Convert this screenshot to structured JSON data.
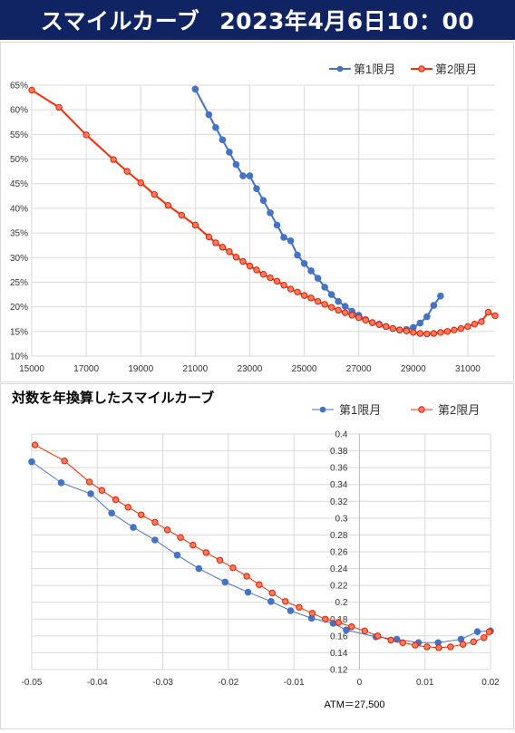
{
  "header": {
    "title": "スマイルカーブ",
    "datetime": "2023年4月6日10：00",
    "background_color": "#102463"
  },
  "chart_data": [
    {
      "type": "line",
      "title": "",
      "xlim": [
        15000,
        32000
      ],
      "ylim": [
        10,
        65
      ],
      "x_ticks": [
        15000,
        17000,
        19000,
        21000,
        23000,
        25000,
        27000,
        29000,
        31000
      ],
      "x_tick_labels": [
        "15000",
        "17000",
        "19000",
        "21000",
        "23000",
        "25000",
        "27000",
        "29000",
        "31000"
      ],
      "y_ticks": [
        10,
        15,
        20,
        25,
        30,
        35,
        40,
        45,
        50,
        55,
        60,
        65
      ],
      "y_tick_labels": [
        "10%",
        "15%",
        "20%",
        "25%",
        "30%",
        "35%",
        "40%",
        "45%",
        "50%",
        "55%",
        "60%",
        "65%"
      ],
      "grid": true,
      "legend": "top-right",
      "series": [
        {
          "name": "第1限月",
          "color": "#4472C4",
          "x": [
            21000,
            21500,
            21750,
            22000,
            22250,
            22500,
            22750,
            23000,
            23250,
            23500,
            23750,
            24000,
            24250,
            24500,
            24750,
            25000,
            25250,
            25500,
            25750,
            26000,
            26250,
            26500,
            26750,
            27000,
            27250,
            27500,
            27750,
            28000,
            28250,
            28500,
            28750,
            29000,
            29250,
            29500,
            29750,
            30000
          ],
          "y": [
            64.2,
            59.0,
            56.4,
            53.9,
            51.4,
            48.9,
            46.6,
            46.6,
            44.0,
            41.6,
            39.1,
            36.6,
            34.1,
            33.4,
            30.5,
            28.8,
            27.3,
            25.8,
            24.0,
            22.5,
            21.1,
            20.1,
            19.1,
            18.3,
            17.4,
            16.8,
            16.5,
            16.0,
            15.6,
            15.3,
            15.4,
            15.8,
            16.7,
            18.0,
            20.3,
            22.2
          ]
        },
        {
          "name": "第2限月",
          "color": "#FF2A00",
          "x": [
            15000,
            16000,
            17000,
            18000,
            18500,
            19000,
            19500,
            20000,
            20500,
            21000,
            21500,
            21750,
            22000,
            22250,
            22500,
            22750,
            23000,
            23250,
            23500,
            23750,
            24000,
            24250,
            24500,
            24750,
            25000,
            25250,
            25500,
            25750,
            26000,
            26250,
            26500,
            26750,
            27000,
            27250,
            27500,
            27750,
            28000,
            28250,
            28500,
            28750,
            29000,
            29250,
            29500,
            29750,
            30000,
            30250,
            30500,
            30750,
            31000,
            31250,
            31500,
            31750,
            32000
          ],
          "y": [
            64.0,
            60.5,
            54.9,
            49.9,
            47.5,
            45.2,
            42.8,
            40.6,
            38.6,
            36.6,
            34.2,
            33.0,
            32.1,
            31.2,
            30.1,
            29.2,
            28.3,
            27.5,
            26.6,
            25.9,
            25.2,
            24.4,
            23.6,
            23.0,
            22.3,
            21.8,
            21.1,
            20.5,
            19.9,
            19.3,
            18.8,
            18.3,
            17.8,
            17.3,
            16.8,
            16.4,
            16.0,
            15.6,
            15.3,
            15.1,
            14.8,
            14.6,
            14.5,
            14.6,
            14.8,
            15.0,
            15.3,
            15.6,
            16.0,
            16.5,
            17.0,
            18.9,
            18.2
          ]
        }
      ]
    },
    {
      "type": "line",
      "title": "対数を年換算したスマイルカーブ",
      "annotation": "ATM＝27,500",
      "xlim": [
        -0.05,
        0.02
      ],
      "ylim": [
        0.12,
        0.4
      ],
      "x_ticks": [
        -0.05,
        -0.04,
        -0.03,
        -0.02,
        -0.01,
        0,
        0.01,
        0.02
      ],
      "x_tick_labels": [
        "-0.05",
        "-0.04",
        "-0.03",
        "-0.02",
        "-0.01",
        "0",
        "0.01",
        "0.02"
      ],
      "y_ticks": [
        0.12,
        0.14,
        0.16,
        0.18,
        0.2,
        0.22,
        0.24,
        0.26,
        0.28,
        0.3,
        0.32,
        0.34,
        0.36,
        0.38,
        0.4
      ],
      "y_tick_labels": [
        "0.12",
        "0.14",
        "0.16",
        "0.18",
        "0.2",
        "0.22",
        "0.24",
        "0.26",
        "0.28",
        "0.3",
        "0.32",
        "0.34",
        "0.36",
        "0.38",
        "0.4"
      ],
      "grid": true,
      "legend": "top-right",
      "series": [
        {
          "name": "第1限月",
          "color": "#4472C4",
          "x": [
            -0.05,
            -0.0455,
            -0.041,
            -0.0378,
            -0.0345,
            -0.0312,
            -0.0278,
            -0.0245,
            -0.0205,
            -0.017,
            -0.0135,
            -0.0105,
            -0.0073,
            -0.004,
            -0.002,
            0.0025,
            0.0057,
            0.009,
            0.012,
            0.0155,
            0.018,
            0.02
          ],
          "y": [
            0.367,
            0.342,
            0.329,
            0.306,
            0.289,
            0.274,
            0.256,
            0.24,
            0.224,
            0.212,
            0.201,
            0.19,
            0.181,
            0.175,
            0.167,
            0.159,
            0.156,
            0.152,
            0.152,
            0.156,
            0.165,
            0.166
          ]
        },
        {
          "name": "第2限月",
          "color": "#FF2A00",
          "x": [
            -0.0495,
            -0.045,
            -0.0412,
            -0.0393,
            -0.0372,
            -0.0353,
            -0.0333,
            -0.0312,
            -0.0293,
            -0.0273,
            -0.0254,
            -0.0234,
            -0.0213,
            -0.0193,
            -0.0172,
            -0.0153,
            -0.0133,
            -0.0113,
            -0.0092,
            -0.0072,
            -0.0052,
            -0.0032,
            -0.0012,
            0.0008,
            0.0028,
            0.0048,
            0.0066,
            0.0085,
            0.0103,
            0.0121,
            0.0139,
            0.0158,
            0.0174,
            0.019,
            0.0198
          ],
          "y": [
            0.387,
            0.368,
            0.343,
            0.333,
            0.322,
            0.313,
            0.304,
            0.295,
            0.286,
            0.277,
            0.268,
            0.259,
            0.25,
            0.241,
            0.231,
            0.221,
            0.211,
            0.201,
            0.194,
            0.187,
            0.18,
            0.176,
            0.171,
            0.166,
            0.16,
            0.155,
            0.152,
            0.149,
            0.147,
            0.146,
            0.147,
            0.15,
            0.153,
            0.158,
            0.165
          ]
        }
      ]
    }
  ]
}
